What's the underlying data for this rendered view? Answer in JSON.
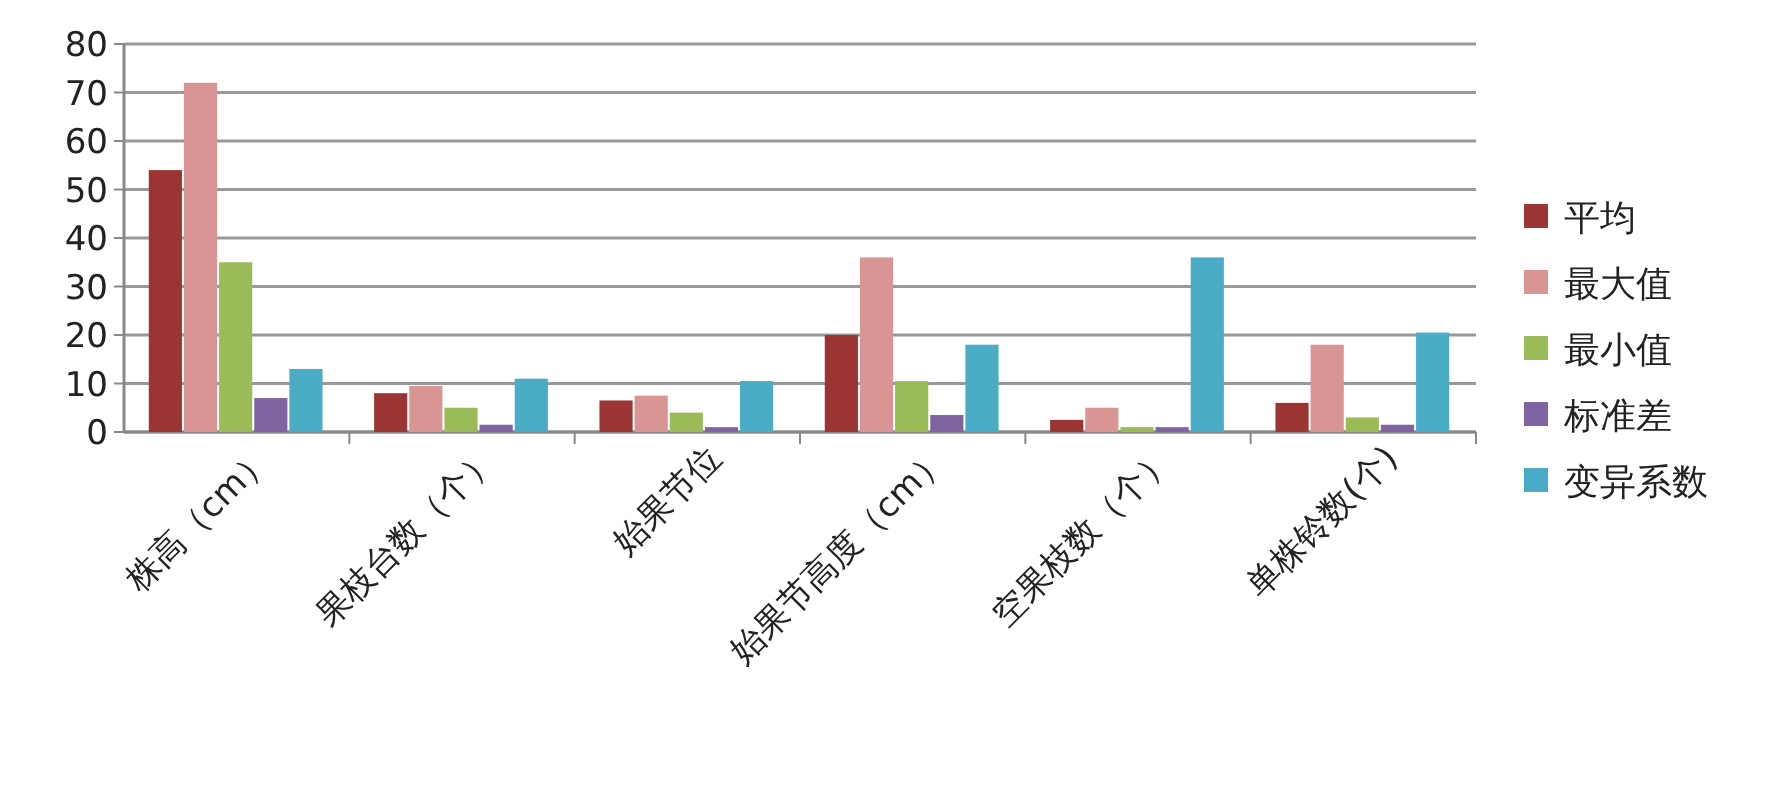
{
  "chart_data": {
    "type": "bar",
    "categories": [
      "株高（cm）",
      "果枝台数（个）",
      "始果节位",
      "始果节高度（cm）",
      "空果枝数（个）",
      "单株铃数(个)"
    ],
    "series": [
      {
        "name": "平均",
        "color": "#9b3533",
        "values": [
          54,
          8,
          6.5,
          20,
          2.5,
          6
        ]
      },
      {
        "name": "最大值",
        "color": "#d99594",
        "values": [
          72,
          9.5,
          7.5,
          36,
          5,
          18
        ]
      },
      {
        "name": "最小值",
        "color": "#9bbb59",
        "values": [
          35,
          5,
          4,
          10.5,
          1,
          3
        ]
      },
      {
        "name": "标准差",
        "color": "#8064a2",
        "values": [
          7,
          1.5,
          1,
          3.5,
          1,
          1.5
        ]
      },
      {
        "name": "变异系数",
        "color": "#4bacc6",
        "values": [
          13,
          11,
          10.5,
          18,
          36,
          20.5
        ]
      }
    ],
    "ylim": [
      0,
      80
    ],
    "yticks": [
      0,
      10,
      20,
      30,
      40,
      50,
      60,
      70,
      80
    ],
    "grid": "y",
    "legend": "right"
  }
}
